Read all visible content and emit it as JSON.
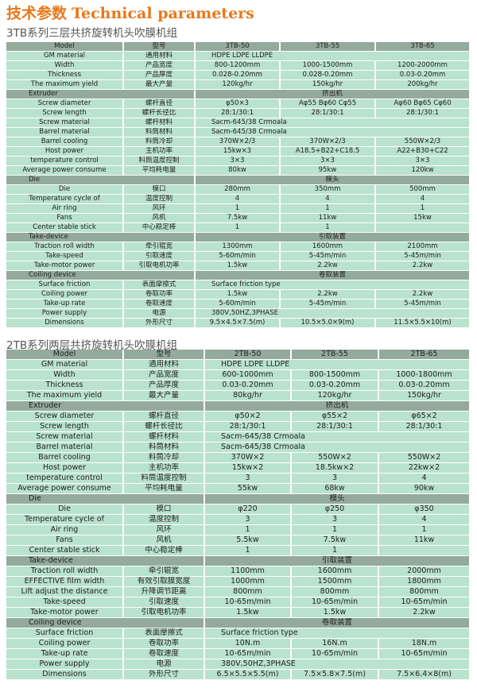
{
  "heading": {
    "zh": "技术参数",
    "en": "Technical parameters"
  },
  "colors": {
    "title": "#e8781c",
    "header_row": "#93aa9d",
    "data_row": "#b9e2cf"
  },
  "tables": [
    {
      "subtitle": "3TB系列三层共挤旋转机头吹膜机组",
      "header": {
        "en": "Model",
        "zh": "型号",
        "models": [
          "3TB-50",
          "3TB-55",
          "3TB-65"
        ]
      },
      "sections": [
        {
          "en": "",
          "zh": "",
          "rows": [
            {
              "en": "GM material",
              "zh": "通用材料",
              "values": [
                "HDPE    LDPE    LLDPE"
              ]
            },
            {
              "en": "Width",
              "zh": "产品宽度",
              "values": [
                "800-1200mm",
                "1000-1500mm",
                "1200-2000mm"
              ]
            },
            {
              "en": "Thickness",
              "zh": "产品厚度",
              "values": [
                "0.028-0.20mm",
                "0.028-0.20mm",
                "0.03-0.20mm"
              ]
            },
            {
              "en": "The maximum yield",
              "zh": "最大产量",
              "values": [
                "120kg/hr",
                "150kg/hr",
                "200kg/hr"
              ]
            }
          ]
        },
        {
          "en": "Extruder",
          "zh": "挤出机",
          "rows": [
            {
              "en": "Screw diameter",
              "zh": "螺杆直径",
              "values": [
                "φ50×3",
                "Aφ55 Bφ60 Cφ55",
                "Aφ60 Bφ65 Cφ60"
              ]
            },
            {
              "en": "Screw length",
              "zh": "螺杆长径比",
              "values": [
                "28:1/30:1",
                "28:1/30:1",
                "28:1/30:1"
              ]
            },
            {
              "en": "Screw material",
              "zh": "螺杆材料",
              "values": [
                "Sacm-645/38 Crmoala"
              ]
            },
            {
              "en": "Barrel material",
              "zh": "料筒材料",
              "values": [
                "Sacm-645/38 Crmoala"
              ]
            },
            {
              "en": "Barrel cooling",
              "zh": "料筒冷却",
              "values": [
                "370W×2/3",
                "370W×2/3",
                "550W×2/3"
              ]
            },
            {
              "en": "Host power",
              "zh": "主机功率",
              "values": [
                "15kw×3",
                "A18.5+B22+C18.5",
                "A22+B30+C22"
              ]
            },
            {
              "en": "temperature control",
              "zh": "料筒温度控制",
              "values": [
                "3×3",
                "3×3",
                "3×3"
              ]
            },
            {
              "en": "Average power consume",
              "zh": "平均耗电量",
              "values": [
                "80kw",
                "95kw",
                "120kw"
              ]
            }
          ]
        },
        {
          "en": "Die",
          "zh": "模头",
          "rows": [
            {
              "en": "Die",
              "zh": "模口",
              "values": [
                "280mm",
                "350mm",
                "500mm"
              ]
            },
            {
              "en": "Temperature cycle of",
              "zh": "温度控制",
              "values": [
                "4",
                "4",
                "4"
              ]
            },
            {
              "en": "Air ring",
              "zh": "风环",
              "values": [
                "1",
                "1",
                "1"
              ]
            },
            {
              "en": "Fans",
              "zh": "风机",
              "values": [
                "7.5kw",
                "11kw",
                "15kw"
              ]
            },
            {
              "en": "Center stable stick",
              "zh": "中心稳定棒",
              "values": [
                "1",
                "1",
                ""
              ]
            }
          ]
        },
        {
          "en": "Take-device",
          "zh": "引取装置",
          "rows": [
            {
              "en": "Traction roll width",
              "zh": "牵引辊宽",
              "values": [
                "1300mm",
                "1600mm",
                "2100mm"
              ]
            },
            {
              "en": "Take-speed",
              "zh": "引取速度",
              "values": [
                "5-60m/min",
                "5-45m/min",
                "5-45m/min"
              ]
            },
            {
              "en": "Take-motor power",
              "zh": "引取电机功率",
              "values": [
                "1.5kw",
                "2.2kw",
                "2.2kw"
              ]
            }
          ]
        },
        {
          "en": "Coiling device",
          "zh": "卷取装置",
          "rows": [
            {
              "en": "Surface friction",
              "zh": "表面摩擦式",
              "values": [
                "Surface friction type"
              ]
            },
            {
              "en": "Coiling power",
              "zh": "卷取功率",
              "values": [
                "1.5kw",
                "2.2kw",
                "2.2kw"
              ]
            },
            {
              "en": "Take-up rate",
              "zh": "卷取速度",
              "values": [
                "5-60m/min",
                "5-45m/min",
                "5-45m/min"
              ]
            },
            {
              "en": "Power supply",
              "zh": "电源",
              "values": [
                "380V,50HZ,3PHASE"
              ]
            },
            {
              "en": "Dimensions",
              "zh": "外形尺寸",
              "values": [
                "9.5×4.5×7.5(m)",
                "10.5×5.0×9(m)",
                "11.5×5.5×10(m)"
              ]
            }
          ]
        }
      ]
    },
    {
      "subtitle": "2TB系列两层共挤旋转机头吹膜机组",
      "header": {
        "en": "Model",
        "zh": "型号",
        "models": [
          "2TB-50",
          "2TB-55",
          "2TB-65"
        ]
      },
      "sections": [
        {
          "en": "",
          "zh": "",
          "rows": [
            {
              "en": "GM material",
              "zh": "通用材料",
              "values": [
                "HDPE    LDPE    LLDPE"
              ]
            },
            {
              "en": "Width",
              "zh": "产品宽度",
              "values": [
                "600-1000mm",
                "800-1500mm",
                "1000-1800mm"
              ]
            },
            {
              "en": "Thickness",
              "zh": "产品厚度",
              "values": [
                "0.03-0.20mm",
                "0.03-0.20mm",
                "0.03-0.20mm"
              ]
            },
            {
              "en": "The maximum yield",
              "zh": "最大产量",
              "values": [
                "80kg/hr",
                "120kg/hr",
                "150kg/hr"
              ]
            }
          ]
        },
        {
          "en": "Extruder",
          "zh": "挤出机",
          "rows": [
            {
              "en": "Screw diameter",
              "zh": "螺杆直径",
              "values": [
                "φ50×2",
                "φ55×2",
                "φ65×2"
              ]
            },
            {
              "en": "Screw length",
              "zh": "螺杆长径比",
              "values": [
                "28:1/30:1",
                "28:1/30:1",
                "28:1/30:1"
              ]
            },
            {
              "en": "Screw material",
              "zh": "螺杆材料",
              "values": [
                "Sacm-645/38 Crmoala"
              ]
            },
            {
              "en": "Barrel material",
              "zh": "料筒材料",
              "values": [
                "Sacm-645/38 Crmoala"
              ]
            },
            {
              "en": "Barrel cooling",
              "zh": "料筒冷却",
              "values": [
                "370W×2",
                "550W×2",
                "550W×2"
              ]
            },
            {
              "en": "Host power",
              "zh": "主机功率",
              "values": [
                "15kw×2",
                "18.5kw×2",
                "22kw×2"
              ]
            },
            {
              "en": "temperature control",
              "zh": "料筒温度控制",
              "values": [
                "3",
                "3",
                "4"
              ]
            },
            {
              "en": "Average power consume",
              "zh": "平均耗电量",
              "values": [
                "55kw",
                "68kw",
                "90kw"
              ]
            }
          ]
        },
        {
          "en": "Die",
          "zh": "模头",
          "rows": [
            {
              "en": "Die",
              "zh": "模口",
              "values": [
                "φ220",
                "φ250",
                "φ350"
              ]
            },
            {
              "en": "Temperature cycle of",
              "zh": "温度控制",
              "values": [
                "3",
                "3",
                "4"
              ]
            },
            {
              "en": "Air ring",
              "zh": "风环",
              "values": [
                "1",
                "1",
                "1"
              ]
            },
            {
              "en": "Fans",
              "zh": "风机",
              "values": [
                "5.5kw",
                "7.5kw",
                "11kw"
              ]
            },
            {
              "en": "Center stable stick",
              "zh": "中心稳定棒",
              "values": [
                "1",
                "1",
                ""
              ]
            }
          ]
        },
        {
          "en": "Take-device",
          "zh": "引取装置",
          "rows": [
            {
              "en": "Traction roll width",
              "zh": "牵引辊宽",
              "values": [
                "1100mm",
                "1600mm",
                "2000mm"
              ]
            },
            {
              "en": "EFFECTIVE film width",
              "zh": "有效引取膜宽度",
              "values": [
                "1000mm",
                "1500mm",
                "1800mm"
              ]
            },
            {
              "en": "Lift adjust the distance",
              "zh": "升降调节距离",
              "values": [
                "800mm",
                "800mm",
                "800mm"
              ]
            },
            {
              "en": "Take-speed",
              "zh": "引取速度",
              "values": [
                "10-65m/min",
                "10-65m/min",
                "10-65m/min"
              ]
            },
            {
              "en": "Take-motor power",
              "zh": "引取电机功率",
              "values": [
                "1.5kw",
                "1.5kw",
                "2.2kw"
              ]
            }
          ]
        },
        {
          "en": "Coiling device",
          "zh": "卷取装置",
          "rows": [
            {
              "en": "Surface friction",
              "zh": "表面摩擦式",
              "values": [
                "Surface friction type"
              ]
            },
            {
              "en": "Coiling power",
              "zh": "卷取功率",
              "values": [
                "10N.m",
                "16N.m",
                "18N.m"
              ]
            },
            {
              "en": "Take-up rate",
              "zh": "卷取速度",
              "values": [
                "10-65m/min",
                "10-65m/min",
                "10-65m/min"
              ]
            },
            {
              "en": "Power supply",
              "zh": "电源",
              "values": [
                "380V,50HZ,3PHASE"
              ]
            },
            {
              "en": "Dimensions",
              "zh": "外形尺寸",
              "values": [
                "6.5×5.5×5.5(m)",
                "7.5×5.8×7.5(m)",
                "7.5×6.4×8(m)"
              ]
            }
          ]
        }
      ]
    }
  ]
}
